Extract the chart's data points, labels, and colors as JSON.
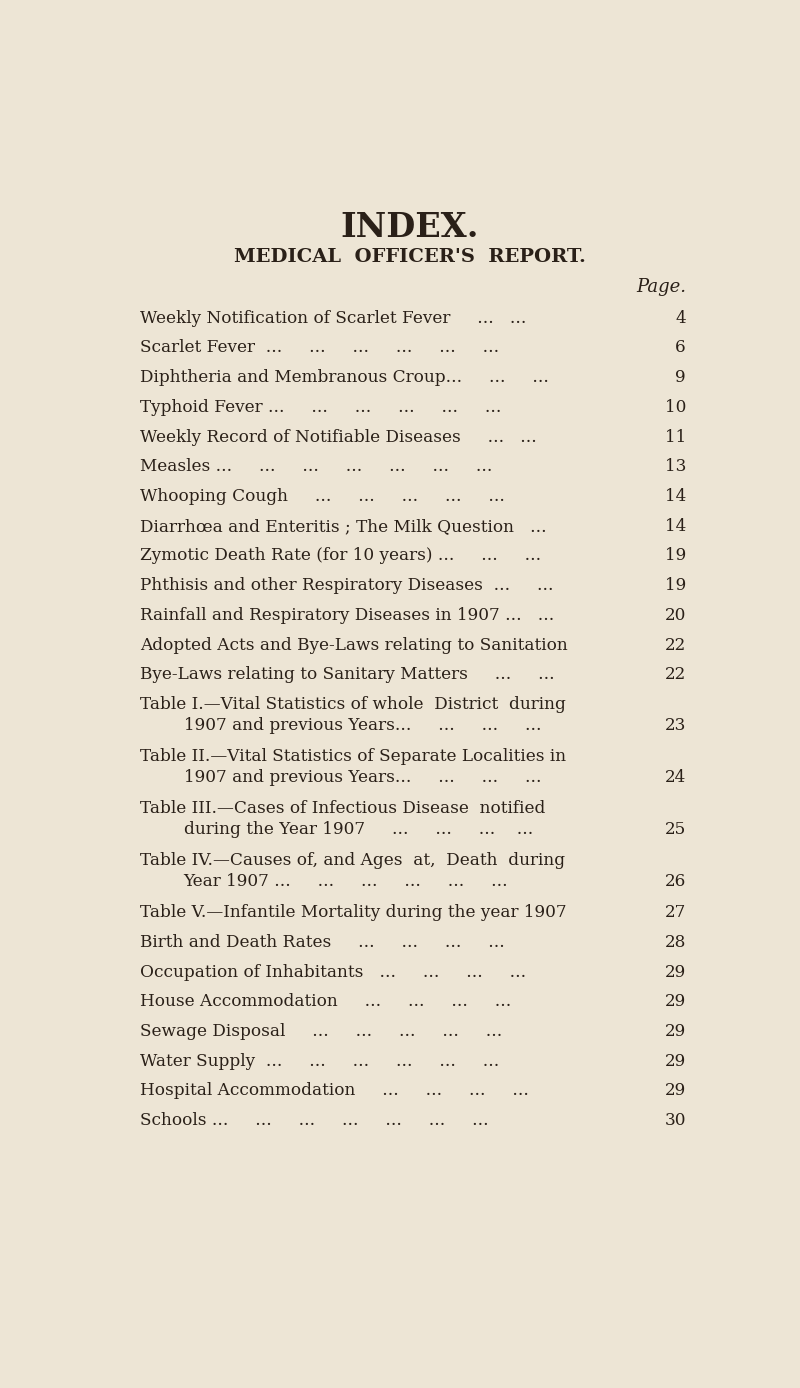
{
  "bg_color": "#ede5d5",
  "text_color": "#2a2018",
  "title": "INDEX.",
  "subtitle": "MEDICAL  OFFICER'S  REPORT.",
  "page_label": "Page.",
  "entries": [
    {
      "text": "Weekly Notification of Scarlet Fever     ...   ...",
      "page": "4",
      "indent": false
    },
    {
      "text": "Scarlet Fever  ...     ...     ...     ...     ...     ...",
      "page": "6",
      "indent": false
    },
    {
      "text": "Diphtheria and Membranous Croup...     ...     ...",
      "page": "9",
      "indent": false
    },
    {
      "text": "Typhoid Fever ...     ...     ...     ...     ...     ...",
      "page": "10",
      "indent": false
    },
    {
      "text": "Weekly Record of Notifiable Diseases     ...   ...",
      "page": "11",
      "indent": false
    },
    {
      "text": "Measles ...     ...     ...     ...     ...     ...     ...",
      "page": "13",
      "indent": false
    },
    {
      "text": "Whooping Cough     ...     ...     ...     ...     ...",
      "page": "14",
      "indent": false
    },
    {
      "text": "Diarrhœa and Enteritis ; The Milk Question   ...",
      "page": "14",
      "indent": false
    },
    {
      "text": "Zymotic Death Rate (for 10 years) ...     ...     ...",
      "page": "19",
      "indent": false
    },
    {
      "text": "Phthisis and other Respiratory Diseases  ...     ...",
      "page": "19",
      "indent": false
    },
    {
      "text": "Rainfall and Respiratory Diseases in 1907 ...   ...",
      "page": "20",
      "indent": false
    },
    {
      "text": "Adopted Acts and Bye-Laws relating to Sanitation",
      "page": "22",
      "indent": false
    },
    {
      "text": "Bye-Laws relating to Sanitary Matters     ...     ...",
      "page": "22",
      "indent": false
    },
    {
      "text": "Table I.—Vital Statistics of whole  District  during",
      "page": "",
      "indent": false
    },
    {
      "text": "1907 and previous Years...     ...     ...     ...",
      "page": "23",
      "indent": true
    },
    {
      "text": "Table II.—Vital Statistics of Separate Localities in",
      "page": "",
      "indent": false
    },
    {
      "text": "1907 and previous Years...     ...     ...     ...",
      "page": "24",
      "indent": true
    },
    {
      "text": "Table III.—Cases of Infectious Disease  notified",
      "page": "",
      "indent": false
    },
    {
      "text": "during the Year 1907     ...     ...     ...    ...",
      "page": "25",
      "indent": true
    },
    {
      "text": "Table IV.—Causes of, and Ages  at,  Death  during",
      "page": "",
      "indent": false
    },
    {
      "text": "Year 1907 ...     ...     ...     ...     ...     ...",
      "page": "26",
      "indent": true
    },
    {
      "text": "Table V.—Infantile Mortality during the year 1907",
      "page": "27",
      "indent": false
    },
    {
      "text": "Birth and Death Rates     ...     ...     ...     ...",
      "page": "28",
      "indent": false
    },
    {
      "text": "Occupation of Inhabitants   ...     ...     ...     ...",
      "page": "29",
      "indent": false
    },
    {
      "text": "House Accommodation     ...     ...     ...     ...",
      "page": "29",
      "indent": false
    },
    {
      "text": "Sewage Disposal     ...     ...     ...     ...     ...",
      "page": "29",
      "indent": false
    },
    {
      "text": "Water Supply  ...     ...     ...     ...     ...     ...",
      "page": "29",
      "indent": false
    },
    {
      "text": "Hospital Accommodation     ...     ...     ...     ...",
      "page": "29",
      "indent": false
    },
    {
      "text": "Schools ...     ...     ...     ...     ...     ...     ...",
      "page": "30",
      "indent": false
    }
  ]
}
